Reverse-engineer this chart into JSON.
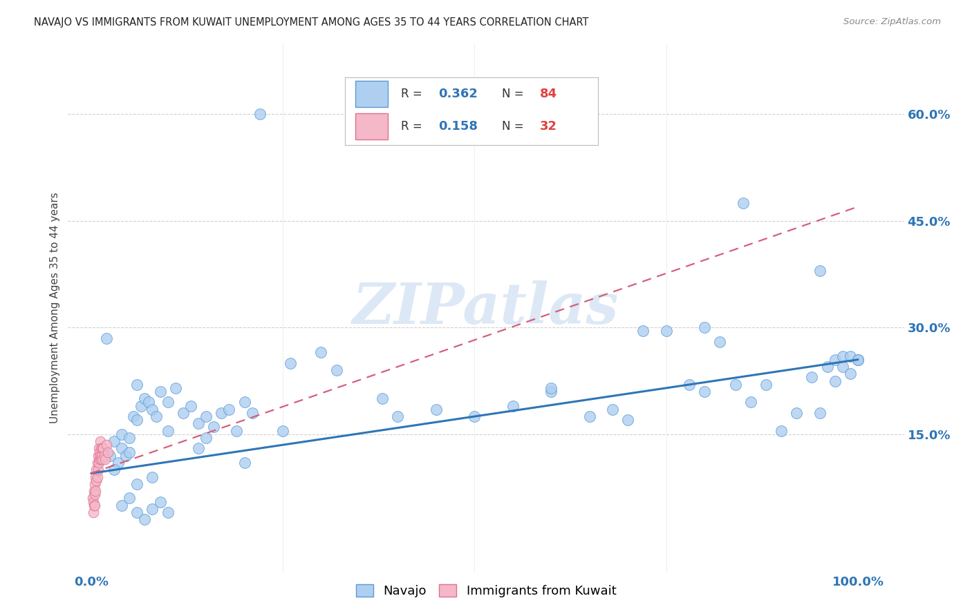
{
  "title": "NAVAJO VS IMMIGRANTS FROM KUWAIT UNEMPLOYMENT AMONG AGES 35 TO 44 YEARS CORRELATION CHART",
  "source": "Source: ZipAtlas.com",
  "ylabel_label": "Unemployment Among Ages 35 to 44 years",
  "navajo_R": 0.362,
  "navajo_N": 84,
  "kuwait_R": 0.158,
  "kuwait_N": 32,
  "navajo_color": "#aecff0",
  "navajo_edge_color": "#5b9bd5",
  "navajo_line_color": "#2e75b6",
  "kuwait_color": "#f4b8c8",
  "kuwait_edge_color": "#e07090",
  "kuwait_line_color": "#d45f7a",
  "grid_color": "#d0d0d0",
  "watermark_color": "#dce8f5",
  "bg_color": "#ffffff",
  "xlim": [
    0.0,
    1.0
  ],
  "ylim": [
    0.0,
    0.65
  ],
  "yticks": [
    0.15,
    0.3,
    0.45,
    0.6
  ],
  "ytick_labels": [
    "15.0%",
    "30.0%",
    "45.0%",
    "60.0%"
  ],
  "xticks": [
    0.0,
    1.0
  ],
  "xtick_labels": [
    "0.0%",
    "100.0%"
  ],
  "navajo_line_x": [
    0.0,
    1.0
  ],
  "navajo_line_y": [
    0.095,
    0.255
  ],
  "kuwait_line_x": [
    0.0,
    1.0
  ],
  "kuwait_line_y": [
    0.095,
    0.47
  ],
  "navajo_x": [
    0.02,
    0.025,
    0.03,
    0.035,
    0.04,
    0.04,
    0.045,
    0.05,
    0.055,
    0.06,
    0.06,
    0.065,
    0.07,
    0.075,
    0.08,
    0.085,
    0.09,
    0.1,
    0.11,
    0.12,
    0.13,
    0.22,
    0.14,
    0.15,
    0.16,
    0.17,
    0.18,
    0.19,
    0.2,
    0.21,
    0.04,
    0.05,
    0.06,
    0.07,
    0.08,
    0.09,
    0.1,
    0.26,
    0.3,
    0.32,
    0.38,
    0.45,
    0.5,
    0.55,
    0.6,
    0.65,
    0.68,
    0.7,
    0.72,
    0.75,
    0.78,
    0.8,
    0.82,
    0.84,
    0.86,
    0.88,
    0.9,
    0.92,
    0.94,
    0.95,
    0.96,
    0.97,
    0.97,
    0.98,
    0.98,
    0.99,
    0.99,
    1.0,
    1.0,
    1.0,
    0.03,
    0.06,
    0.08,
    0.14,
    0.2,
    0.25,
    0.4,
    0.6,
    0.8,
    0.95,
    0.05,
    0.1,
    0.15,
    0.85
  ],
  "navajo_y": [
    0.285,
    0.12,
    0.14,
    0.11,
    0.13,
    0.15,
    0.12,
    0.145,
    0.175,
    0.17,
    0.22,
    0.19,
    0.2,
    0.195,
    0.185,
    0.175,
    0.21,
    0.195,
    0.215,
    0.18,
    0.19,
    0.6,
    0.165,
    0.175,
    0.16,
    0.18,
    0.185,
    0.155,
    0.195,
    0.18,
    0.05,
    0.06,
    0.04,
    0.03,
    0.045,
    0.055,
    0.04,
    0.25,
    0.265,
    0.24,
    0.2,
    0.185,
    0.175,
    0.19,
    0.21,
    0.175,
    0.185,
    0.17,
    0.295,
    0.295,
    0.22,
    0.21,
    0.28,
    0.22,
    0.195,
    0.22,
    0.155,
    0.18,
    0.23,
    0.18,
    0.245,
    0.255,
    0.225,
    0.26,
    0.245,
    0.26,
    0.235,
    0.255,
    0.255,
    0.255,
    0.1,
    0.08,
    0.09,
    0.13,
    0.11,
    0.155,
    0.175,
    0.215,
    0.3,
    0.38,
    0.125,
    0.155,
    0.145,
    0.475
  ],
  "kuwait_x": [
    0.002,
    0.003,
    0.003,
    0.004,
    0.004,
    0.005,
    0.005,
    0.005,
    0.006,
    0.006,
    0.007,
    0.007,
    0.008,
    0.008,
    0.009,
    0.009,
    0.01,
    0.01,
    0.011,
    0.011,
    0.012,
    0.012,
    0.013,
    0.013,
    0.014,
    0.015,
    0.015,
    0.016,
    0.017,
    0.018,
    0.02,
    0.022
  ],
  "kuwait_y": [
    0.06,
    0.055,
    0.04,
    0.07,
    0.05,
    0.08,
    0.065,
    0.05,
    0.09,
    0.07,
    0.1,
    0.085,
    0.11,
    0.09,
    0.12,
    0.1,
    0.13,
    0.11,
    0.125,
    0.115,
    0.14,
    0.12,
    0.13,
    0.115,
    0.12,
    0.13,
    0.115,
    0.13,
    0.12,
    0.115,
    0.135,
    0.125
  ]
}
